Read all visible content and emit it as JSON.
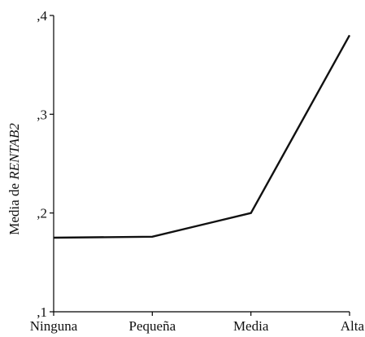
{
  "chart_data": {
    "type": "line",
    "categories": [
      "Ninguna",
      "Pequeña",
      "Media",
      "Alta"
    ],
    "series": [
      {
        "values": [
          0.175,
          0.176,
          0.2,
          0.38
        ]
      }
    ],
    "ylabel_prefix": "Media de ",
    "ylabel_var": "RENTAB2",
    "ylim": [
      0.1,
      0.4
    ],
    "yticks": [
      {
        "value": 0.1,
        "label": ",1"
      },
      {
        "value": 0.2,
        "label": ",2"
      },
      {
        "value": 0.3,
        "label": ",3"
      },
      {
        "value": 0.4,
        "label": ",4"
      }
    ],
    "grid": false,
    "line_color": "#111111"
  }
}
